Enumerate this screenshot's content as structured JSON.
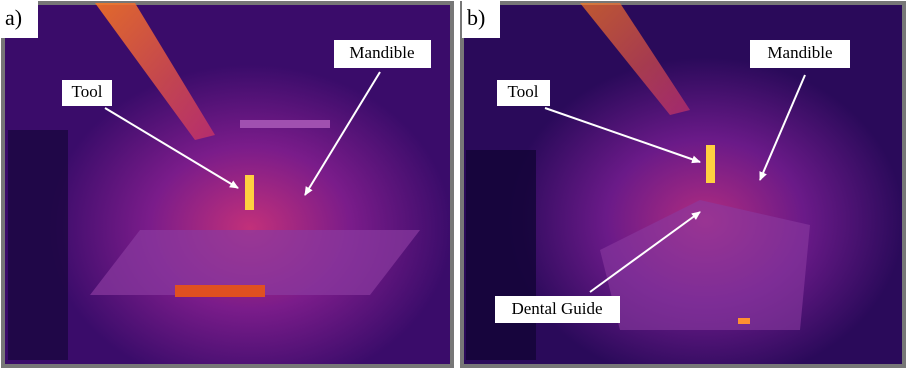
{
  "panels": [
    {
      "label": "a)",
      "annotations": [
        "Mandible",
        "Tool"
      ]
    },
    {
      "label": "b)",
      "annotations": [
        "Mandible",
        "Tool",
        "Dental Guide"
      ]
    }
  ]
}
